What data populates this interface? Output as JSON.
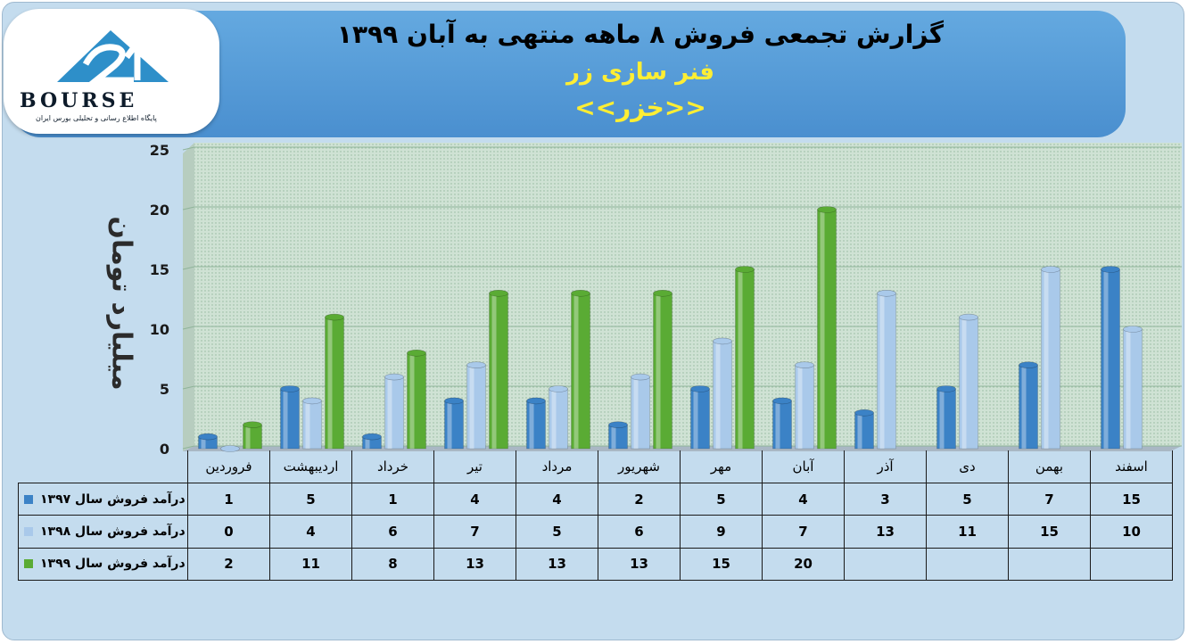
{
  "header": {
    "title": "گزارش تجمعی فروش ۸ ماهه منتهی به آبان ۱۳۹۹",
    "company": "فنر سازی زر",
    "symbol": "<<خزر>>"
  },
  "logo": {
    "word": "BOURSE",
    "tagline": "پایگاه اطلاع رسانی و تحلیلی بورس ایران",
    "colors": {
      "primary": "#2e8fc9",
      "dark": "#0d1b2a"
    }
  },
  "chart_data": {
    "type": "bar",
    "ylabel": "میلیارد تومان",
    "ylim": [
      0,
      25
    ],
    "yticks": [
      0,
      5,
      10,
      15,
      20,
      25
    ],
    "categories": [
      "فروردین",
      "اردیبهشت",
      "خرداد",
      "تیر",
      "مرداد",
      "شهریور",
      "مهر",
      "آبان",
      "آذر",
      "دی",
      "بهمن",
      "اسفند"
    ],
    "series": [
      {
        "name": "درآمد فروش سال ۱۳۹۷",
        "color": "#3b82c6",
        "values": [
          1,
          5,
          1,
          4,
          4,
          2,
          5,
          4,
          3,
          5,
          7,
          15
        ]
      },
      {
        "name": "درآمد فروش سال ۱۳۹۸",
        "color": "#a9c9ea",
        "values": [
          0,
          4,
          6,
          7,
          5,
          6,
          9,
          7,
          13,
          11,
          15,
          10
        ]
      },
      {
        "name": "درآمد فروش سال ۱۳۹۹",
        "color": "#5aab34",
        "values": [
          2,
          11,
          8,
          13,
          13,
          13,
          15,
          20,
          null,
          null,
          null,
          null
        ]
      }
    ],
    "grid": true,
    "legend": "table-left"
  }
}
